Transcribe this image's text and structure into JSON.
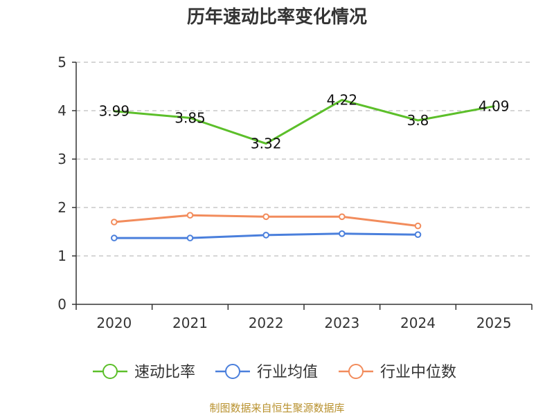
{
  "chart_data": {
    "type": "line",
    "title": "历年速动比率变化情况",
    "categories": [
      "2020",
      "2021",
      "2022",
      "2023",
      "2024",
      "2025"
    ],
    "ylim": [
      0,
      5
    ],
    "yticks": [
      "0",
      "1",
      "2",
      "3",
      "4",
      "5"
    ],
    "grid": true,
    "legend_position": "bottom",
    "series": [
      {
        "name": "速动比率",
        "color": "#5cbf2a",
        "values": [
          3.99,
          3.85,
          3.32,
          4.22,
          3.8,
          4.09
        ],
        "labels": [
          "3.99",
          "3.85",
          "3.32",
          "4.22",
          "3.8",
          "4.09"
        ],
        "show_labels": true,
        "markers": false
      },
      {
        "name": "行业均值",
        "color": "#4a7fdc",
        "values": [
          1.37,
          1.37,
          1.43,
          1.46,
          1.44,
          null
        ],
        "show_labels": false,
        "markers": true
      },
      {
        "name": "行业中位数",
        "color": "#f28c5c",
        "values": [
          1.7,
          1.84,
          1.81,
          1.81,
          1.62,
          null
        ],
        "show_labels": false,
        "markers": true
      }
    ]
  },
  "source": "制图数据来自恒生聚源数据库"
}
